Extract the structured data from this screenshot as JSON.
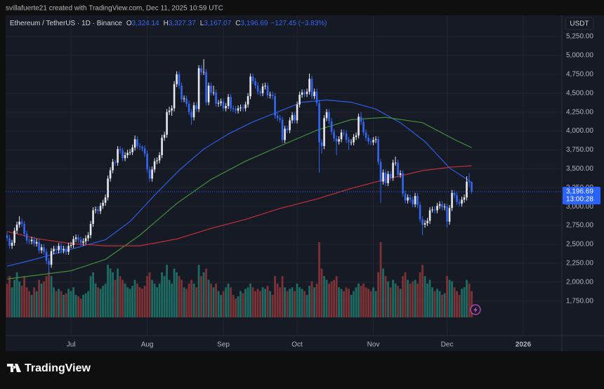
{
  "header": {
    "credit": "svillafuerte21 created with TradingView.com, Dec 11, 2025 10:59 UTC",
    "symbol": "Ethereum / TetherUS · 1D · Binance",
    "ohlc": [
      {
        "label": "O",
        "value": "3,324.14"
      },
      {
        "label": "H",
        "value": "3,327.37"
      },
      {
        "label": "L",
        "value": "3,167.07"
      },
      {
        "label": "C",
        "value": "3,196.69"
      }
    ],
    "change": "−127.45 (−3.83%)"
  },
  "footer": {
    "logo": "TradingView"
  },
  "chart_data": {
    "type": "candlestick",
    "currency": "USDT",
    "up_color": "#e8e9ee",
    "down_color": "#3566f0",
    "volume_up_color": "#1d6b62",
    "volume_down_color": "#7c3236",
    "grid": true,
    "xlim": [
      -0.6,
      225.7
    ],
    "xticks": [
      {
        "value": 26,
        "label": "Jul"
      },
      {
        "value": 57,
        "label": "Aug"
      },
      {
        "value": 88,
        "label": "Sep"
      },
      {
        "value": 118,
        "label": "Oct"
      },
      {
        "value": 149,
        "label": "Nov"
      },
      {
        "value": 179,
        "label": "Dec"
      },
      {
        "value": 210,
        "label": "2026"
      }
    ],
    "ylim": [
      1291,
      5529
    ],
    "yticks": [
      {
        "value": 1750,
        "label": "1,750.00"
      },
      {
        "value": 2000,
        "label": "2,000.00"
      },
      {
        "value": 2250,
        "label": "2,250.00"
      },
      {
        "value": 2500,
        "label": "2,500.00"
      },
      {
        "value": 2750,
        "label": "2,750.00"
      },
      {
        "value": 3000,
        "label": "3,000.00"
      },
      {
        "value": 3250,
        "label": "3,250.00"
      },
      {
        "value": 3500,
        "label": "3,500.00"
      },
      {
        "value": 3750,
        "label": "3,750.00"
      },
      {
        "value": 4000,
        "label": "4,000.00"
      },
      {
        "value": 4250,
        "label": "4,250.00"
      },
      {
        "value": 4500,
        "label": "4,500.00"
      },
      {
        "value": 4750,
        "label": "4,750.00"
      },
      {
        "value": 5000,
        "label": "5,000.00"
      },
      {
        "value": 5250,
        "label": "5,250.00"
      }
    ],
    "price_label": {
      "value": 3196.69,
      "label": "3,196.69",
      "countdown": "13:00:28",
      "color": "#2962ff"
    },
    "candles": [
      [
        2620,
        2660,
        2540,
        2580
      ],
      [
        2580,
        2620,
        2440,
        2480
      ],
      [
        2480,
        2560,
        2440,
        2520
      ],
      [
        2520,
        2720,
        2480,
        2680
      ],
      [
        2680,
        2800,
        2640,
        2760
      ],
      [
        2760,
        2870,
        2720,
        2800
      ],
      [
        2800,
        2840,
        2730,
        2770
      ],
      [
        2770,
        2810,
        2600,
        2640
      ],
      [
        2640,
        2680,
        2510,
        2550
      ],
      [
        2550,
        2580,
        2500,
        2540
      ],
      [
        2540,
        2600,
        2500,
        2560
      ],
      [
        2560,
        2600,
        2470,
        2510
      ],
      [
        2510,
        2570,
        2470,
        2530
      ],
      [
        2530,
        2570,
        2380,
        2420
      ],
      [
        2420,
        2500,
        2380,
        2460
      ],
      [
        2460,
        2500,
        2360,
        2400
      ],
      [
        2400,
        2440,
        2240,
        2280
      ],
      [
        2280,
        2320,
        2110,
        2230
      ],
      [
        2230,
        2450,
        2190,
        2410
      ],
      [
        2410,
        2480,
        2370,
        2440
      ],
      [
        2440,
        2480,
        2380,
        2420
      ],
      [
        2420,
        2520,
        2380,
        2480
      ],
      [
        2480,
        2520,
        2380,
        2420
      ],
      [
        2420,
        2480,
        2380,
        2440
      ],
      [
        2440,
        2480,
        2360,
        2400
      ],
      [
        2400,
        2520,
        2360,
        2480
      ],
      [
        2480,
        2530,
        2450,
        2490
      ],
      [
        2490,
        2610,
        2450,
        2570
      ],
      [
        2570,
        2630,
        2530,
        2590
      ],
      [
        2590,
        2630,
        2520,
        2560
      ],
      [
        2560,
        2600,
        2480,
        2520
      ],
      [
        2520,
        2580,
        2480,
        2540
      ],
      [
        2540,
        2620,
        2500,
        2580
      ],
      [
        2580,
        2660,
        2540,
        2620
      ],
      [
        2620,
        2810,
        2580,
        2770
      ],
      [
        2770,
        2990,
        2730,
        2950
      ],
      [
        2950,
        3000,
        2910,
        2960
      ],
      [
        2960,
        3000,
        2900,
        2940
      ],
      [
        2940,
        3050,
        2900,
        3010
      ],
      [
        3010,
        3090,
        2970,
        3050
      ],
      [
        3050,
        3160,
        3010,
        3120
      ],
      [
        3120,
        3410,
        3080,
        3370
      ],
      [
        3370,
        3520,
        3330,
        3480
      ],
      [
        3480,
        3630,
        3440,
        3590
      ],
      [
        3590,
        3620,
        3540,
        3580
      ],
      [
        3580,
        3800,
        3540,
        3760
      ],
      [
        3760,
        3800,
        3700,
        3740
      ],
      [
        3740,
        3780,
        3600,
        3640
      ],
      [
        3640,
        3720,
        3600,
        3680
      ],
      [
        3680,
        3750,
        3640,
        3710
      ],
      [
        3710,
        3760,
        3680,
        3720
      ],
      [
        3720,
        3820,
        3680,
        3780
      ],
      [
        3780,
        3940,
        3740,
        3890
      ],
      [
        3890,
        3930,
        3760,
        3800
      ],
      [
        3800,
        3840,
        3750,
        3790
      ],
      [
        3790,
        3810,
        3730,
        3770
      ],
      [
        3770,
        3810,
        3660,
        3700
      ],
      [
        3700,
        3740,
        3450,
        3490
      ],
      [
        3490,
        3530,
        3330,
        3370
      ],
      [
        3370,
        3530,
        3330,
        3490
      ],
      [
        3490,
        3640,
        3450,
        3600
      ],
      [
        3600,
        3650,
        3560,
        3610
      ],
      [
        3610,
        3720,
        3570,
        3680
      ],
      [
        3680,
        3950,
        3640,
        3910
      ],
      [
        3910,
        3990,
        3870,
        3950
      ],
      [
        3950,
        4290,
        3910,
        4250
      ],
      [
        4250,
        4320,
        4210,
        4270
      ],
      [
        4270,
        4340,
        4200,
        4300
      ],
      [
        4300,
        4660,
        4260,
        4620
      ],
      [
        4620,
        4790,
        4580,
        4750
      ],
      [
        4750,
        4790,
        4560,
        4600
      ],
      [
        4600,
        4640,
        4380,
        4420
      ],
      [
        4420,
        4470,
        4380,
        4430
      ],
      [
        4430,
        4470,
        4320,
        4360
      ],
      [
        4360,
        4400,
        4210,
        4250
      ],
      [
        4250,
        4290,
        4080,
        4180
      ],
      [
        4180,
        4380,
        4140,
        4340
      ],
      [
        4340,
        4380,
        4250,
        4290
      ],
      [
        4290,
        4870,
        4250,
        4830
      ],
      [
        4830,
        4870,
        4740,
        4780
      ],
      [
        4780,
        4950,
        4740,
        4780
      ],
      [
        4780,
        4820,
        4340,
        4380
      ],
      [
        4380,
        4640,
        4340,
        4600
      ],
      [
        4600,
        4640,
        4470,
        4510
      ],
      [
        4510,
        4600,
        4470,
        4510
      ],
      [
        4510,
        4550,
        4320,
        4360
      ],
      [
        4360,
        4410,
        4320,
        4370
      ],
      [
        4370,
        4430,
        4330,
        4390
      ],
      [
        4390,
        4430,
        4260,
        4300
      ],
      [
        4300,
        4370,
        4260,
        4330
      ],
      [
        4330,
        4490,
        4290,
        4450
      ],
      [
        4450,
        4490,
        4260,
        4300
      ],
      [
        4300,
        4340,
        4250,
        4290
      ],
      [
        4290,
        4330,
        4230,
        4270
      ],
      [
        4270,
        4340,
        4230,
        4300
      ],
      [
        4300,
        4350,
        4260,
        4310
      ],
      [
        4310,
        4350,
        4260,
        4300
      ],
      [
        4300,
        4390,
        4260,
        4350
      ],
      [
        4350,
        4500,
        4310,
        4460
      ],
      [
        4460,
        4760,
        4420,
        4720
      ],
      [
        4720,
        4760,
        4620,
        4660
      ],
      [
        4660,
        4700,
        4560,
        4600
      ],
      [
        4600,
        4640,
        4480,
        4520
      ],
      [
        4520,
        4560,
        4460,
        4500
      ],
      [
        4500,
        4630,
        4460,
        4590
      ],
      [
        4590,
        4640,
        4550,
        4600
      ],
      [
        4600,
        4640,
        4430,
        4470
      ],
      [
        4470,
        4520,
        4430,
        4480
      ],
      [
        4480,
        4520,
        4420,
        4460
      ],
      [
        4460,
        4500,
        4160,
        4200
      ],
      [
        4200,
        4240,
        4130,
        4170
      ],
      [
        4170,
        4210,
        4110,
        4150
      ],
      [
        4150,
        4190,
        3840,
        3880
      ],
      [
        3880,
        4070,
        3840,
        4030
      ],
      [
        4030,
        4070,
        3970,
        4010
      ],
      [
        4010,
        4180,
        3970,
        4140
      ],
      [
        4140,
        4250,
        4100,
        4210
      ],
      [
        4210,
        4250,
        4100,
        4140
      ],
      [
        4140,
        4390,
        4100,
        4350
      ],
      [
        4350,
        4520,
        4310,
        4480
      ],
      [
        4480,
        4550,
        4440,
        4510
      ],
      [
        4510,
        4550,
        4450,
        4490
      ],
      [
        4490,
        4560,
        4450,
        4520
      ],
      [
        4520,
        4760,
        4480,
        4690
      ],
      [
        4690,
        4730,
        4420,
        4460
      ],
      [
        4460,
        4560,
        4420,
        4520
      ],
      [
        4520,
        4560,
        4330,
        4370
      ],
      [
        4370,
        4410,
        3450,
        3850
      ],
      [
        3850,
        3890,
        3700,
        3800
      ],
      [
        3800,
        4210,
        3760,
        4170
      ],
      [
        4170,
        4290,
        4130,
        4250
      ],
      [
        4250,
        4290,
        4090,
        4130
      ],
      [
        4130,
        4170,
        3950,
        3990
      ],
      [
        3990,
        4030,
        3860,
        3900
      ],
      [
        3900,
        3940,
        3680,
        3860
      ],
      [
        3860,
        3930,
        3820,
        3890
      ],
      [
        3890,
        4020,
        3850,
        3980
      ],
      [
        3980,
        4020,
        3930,
        3970
      ],
      [
        3970,
        4010,
        3840,
        3880
      ],
      [
        3880,
        3920,
        3750,
        3850
      ],
      [
        3850,
        3890,
        3810,
        3850
      ],
      [
        3850,
        3960,
        3810,
        3920
      ],
      [
        3920,
        3980,
        3880,
        3940
      ],
      [
        3940,
        4230,
        3900,
        4190
      ],
      [
        4190,
        4250,
        4080,
        4120
      ],
      [
        4120,
        4160,
        3940,
        3980
      ],
      [
        3980,
        4020,
        3870,
        3910
      ],
      [
        3910,
        3950,
        3820,
        3860
      ],
      [
        3860,
        3900,
        3810,
        3850
      ],
      [
        3850,
        3920,
        3810,
        3880
      ],
      [
        3880,
        3930,
        3840,
        3890
      ],
      [
        3890,
        3930,
        3550,
        3590
      ],
      [
        3590,
        3630,
        3050,
        3330
      ],
      [
        3330,
        3490,
        3290,
        3450
      ],
      [
        3450,
        3490,
        3270,
        3310
      ],
      [
        3310,
        3470,
        3270,
        3430
      ],
      [
        3430,
        3470,
        3340,
        3380
      ],
      [
        3380,
        3620,
        3340,
        3580
      ],
      [
        3580,
        3660,
        3540,
        3580
      ],
      [
        3580,
        3620,
        3380,
        3420
      ],
      [
        3420,
        3480,
        3380,
        3440
      ],
      [
        3440,
        3480,
        3130,
        3170
      ],
      [
        3170,
        3210,
        3040,
        3080
      ],
      [
        3080,
        3160,
        3040,
        3120
      ],
      [
        3120,
        3160,
        3050,
        3090
      ],
      [
        3090,
        3130,
        2990,
        3030
      ],
      [
        3030,
        3180,
        2990,
        3140
      ],
      [
        3140,
        3180,
        2980,
        3020
      ],
      [
        3020,
        3060,
        2790,
        2830
      ],
      [
        2830,
        2870,
        2620,
        2760
      ],
      [
        2760,
        2820,
        2720,
        2780
      ],
      [
        2780,
        2850,
        2740,
        2810
      ],
      [
        2810,
        2990,
        2770,
        2950
      ],
      [
        2950,
        3000,
        2920,
        2960
      ],
      [
        2960,
        3000,
        2910,
        2950
      ],
      [
        2950,
        3050,
        2910,
        3010
      ],
      [
        3010,
        3070,
        2970,
        3030
      ],
      [
        3030,
        3070,
        2950,
        2990
      ],
      [
        2990,
        3040,
        2950,
        3000
      ],
      [
        3000,
        3040,
        2720,
        2800
      ],
      [
        2800,
        3020,
        2760,
        2980
      ],
      [
        2980,
        3220,
        2940,
        3180
      ],
      [
        3180,
        3220,
        3110,
        3150
      ],
      [
        3150,
        3190,
        3020,
        3060
      ],
      [
        3060,
        3100,
        3000,
        3040
      ],
      [
        3040,
        3130,
        3000,
        3090
      ],
      [
        3090,
        3160,
        3050,
        3120
      ],
      [
        3120,
        3400,
        3080,
        3330
      ],
      [
        3330,
        3440,
        3260,
        3324.14
      ],
      [
        3324.14,
        3327.37,
        3167.07,
        3196.69
      ]
    ],
    "volume": [
      45,
      55,
      40,
      50,
      60,
      48,
      42,
      55,
      40,
      35,
      30,
      40,
      35,
      50,
      45,
      48,
      55,
      60,
      55,
      40,
      35,
      38,
      35,
      30,
      32,
      38,
      35,
      40,
      30,
      28,
      25,
      30,
      32,
      35,
      55,
      60,
      45,
      40,
      38,
      42,
      45,
      70,
      65,
      60,
      50,
      65,
      55,
      50,
      45,
      40,
      38,
      42,
      50,
      45,
      40,
      38,
      42,
      55,
      60,
      50,
      45,
      40,
      45,
      60,
      55,
      70,
      50,
      45,
      65,
      60,
      55,
      50,
      40,
      38,
      45,
      50,
      45,
      40,
      70,
      55,
      60,
      65,
      50,
      45,
      40,
      45,
      35,
      30,
      35,
      40,
      45,
      40,
      30,
      25,
      28,
      35,
      32,
      38,
      40,
      45,
      40,
      35,
      38,
      35,
      40,
      38,
      42,
      35,
      30,
      55,
      45,
      40,
      55,
      40,
      35,
      38,
      40,
      35,
      45,
      40,
      38,
      35,
      30,
      42,
      48,
      40,
      45,
      100,
      65,
      55,
      50,
      45,
      48,
      50,
      55,
      40,
      38,
      35,
      40,
      38,
      30,
      35,
      40,
      45,
      42,
      45,
      40,
      38,
      35,
      40,
      35,
      60,
      100,
      65,
      55,
      48,
      40,
      50,
      45,
      42,
      38,
      55,
      60,
      50,
      45,
      48,
      50,
      45,
      60,
      70,
      55,
      45,
      50,
      40,
      35,
      38,
      35,
      30,
      32,
      55,
      50,
      48,
      40,
      35,
      30,
      38,
      40,
      50,
      45,
      35
    ],
    "moving_averages": [
      {
        "color": "#2f5de0",
        "x": [
          0,
          10,
          20,
          30,
          40,
          50,
          60,
          70,
          80,
          90,
          100,
          110,
          120,
          130,
          140,
          150,
          160,
          170,
          180,
          189
        ],
        "values": [
          2210,
          2290,
          2380,
          2470,
          2560,
          2800,
          3150,
          3480,
          3760,
          3960,
          4120,
          4250,
          4380,
          4410,
          4380,
          4290,
          4110,
          3860,
          3510,
          3320
        ]
      },
      {
        "color": "#3f8f3a",
        "x": [
          0,
          26,
          40,
          54,
          69,
          83,
          97,
          111,
          126,
          140,
          154,
          169,
          183,
          189
        ],
        "values": [
          2040,
          2150,
          2300,
          2620,
          3040,
          3360,
          3600,
          3800,
          4010,
          4150,
          4180,
          4110,
          3870,
          3780
        ]
      },
      {
        "color": "#c0303a",
        "x": [
          0,
          12,
          26,
          40,
          54,
          69,
          83,
          97,
          111,
          126,
          140,
          154,
          169,
          180,
          189
        ],
        "values": [
          2670,
          2575,
          2510,
          2480,
          2480,
          2570,
          2710,
          2830,
          2975,
          3100,
          3240,
          3360,
          3475,
          3520,
          3540
        ]
      }
    ]
  }
}
